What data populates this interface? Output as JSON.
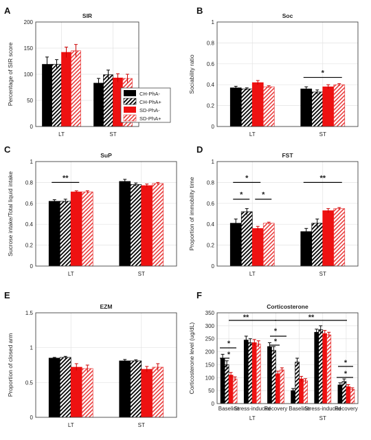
{
  "panel_labels": [
    "A",
    "B",
    "C",
    "D",
    "E",
    "F"
  ],
  "legend": [
    "CH-PhA-",
    "CH-PhA+",
    "SD-PhA-",
    "SD-PhA+"
  ],
  "colors": {
    "black": "#000000",
    "red": "#ee1111",
    "hatch_red": "#e83a3a",
    "axis": "#444444",
    "grid": "#e2e2e2"
  },
  "chart_data": [
    {
      "type": "bar",
      "title": "SIR",
      "ylabel": "Percentage of SIR score",
      "xlabel": "",
      "categories": [
        "LT",
        "ST"
      ],
      "ylim": [
        0,
        200
      ],
      "yticks": [
        "0",
        "50",
        "100",
        "150",
        "200"
      ],
      "ytick_values": [
        0,
        50,
        100,
        150,
        200
      ],
      "grid": true,
      "legend_position": "bottom-right",
      "series": [
        {
          "name": "CH-PhA-",
          "values": [
            119,
            83
          ],
          "errors": [
            14,
            9
          ]
        },
        {
          "name": "CH-PhA+",
          "values": [
            119,
            99
          ],
          "errors": [
            9,
            9
          ]
        },
        {
          "name": "SD-PhA-",
          "values": [
            142,
            93
          ],
          "errors": [
            10,
            8
          ]
        },
        {
          "name": "SD-PhA+",
          "values": [
            145,
            92
          ],
          "errors": [
            12,
            8
          ]
        }
      ],
      "significance": []
    },
    {
      "type": "bar",
      "title": "Soc",
      "ylabel": "Sociability ratio",
      "xlabel": "",
      "categories": [
        "LT",
        "ST"
      ],
      "ylim": [
        0,
        1
      ],
      "yticks": [
        "0",
        "0.2",
        "0.4",
        "0.6",
        "0.8",
        "1"
      ],
      "ytick_values": [
        0,
        0.2,
        0.4,
        0.6,
        0.8,
        1
      ],
      "grid": true,
      "series": [
        {
          "name": "CH-PhA-",
          "values": [
            0.37,
            0.36
          ],
          "errors": [
            0.015,
            0.02
          ]
        },
        {
          "name": "CH-PhA+",
          "values": [
            0.36,
            0.33
          ],
          "errors": [
            0.01,
            0.02
          ]
        },
        {
          "name": "SD-PhA-",
          "values": [
            0.42,
            0.38
          ],
          "errors": [
            0.02,
            0.02
          ]
        },
        {
          "name": "SD-PhA+",
          "values": [
            0.38,
            0.4
          ],
          "errors": [
            0.01,
            0.01
          ]
        }
      ],
      "significance": [
        {
          "group": 1,
          "from_series": 0,
          "to_series": 3,
          "y": 0.47,
          "label": "*"
        }
      ]
    },
    {
      "type": "bar",
      "title": "SuP",
      "ylabel": "Sucrose intake/Total liquid intake",
      "xlabel": "",
      "categories": [
        "LT",
        "ST"
      ],
      "ylim": [
        0,
        1
      ],
      "yticks": [
        "0",
        "0.2",
        "0.4",
        "0.6",
        "0.8",
        "1"
      ],
      "ytick_values": [
        0,
        0.2,
        0.4,
        0.6,
        0.8,
        1
      ],
      "grid": true,
      "series": [
        {
          "name": "CH-PhA-",
          "values": [
            0.62,
            0.81
          ],
          "errors": [
            0.015,
            0.02
          ]
        },
        {
          "name": "CH-PhA+",
          "values": [
            0.62,
            0.78
          ],
          "errors": [
            0.02,
            0.015
          ]
        },
        {
          "name": "SD-PhA-",
          "values": [
            0.71,
            0.77
          ],
          "errors": [
            0.01,
            0.015
          ]
        },
        {
          "name": "SD-PhA+",
          "values": [
            0.71,
            0.79
          ],
          "errors": [
            0.01,
            0.01
          ]
        }
      ],
      "significance": [
        {
          "group": 0,
          "from_series": 0,
          "to_series": 2,
          "y": 0.8,
          "label": "**"
        }
      ]
    },
    {
      "type": "bar",
      "title": "FST",
      "ylabel": "Proportion of immobility time",
      "xlabel": "",
      "categories": [
        "LT",
        "ST"
      ],
      "ylim": [
        0,
        1
      ],
      "yticks": [
        "0",
        "0.2",
        "0.4",
        "0.6",
        "0.8",
        "1"
      ],
      "ytick_values": [
        0,
        0.2,
        0.4,
        0.6,
        0.8,
        1
      ],
      "grid": true,
      "series": [
        {
          "name": "CH-PhA-",
          "values": [
            0.41,
            0.33
          ],
          "errors": [
            0.04,
            0.03
          ]
        },
        {
          "name": "CH-PhA+",
          "values": [
            0.52,
            0.41
          ],
          "errors": [
            0.03,
            0.04
          ]
        },
        {
          "name": "SD-PhA-",
          "values": [
            0.36,
            0.53
          ],
          "errors": [
            0.02,
            0.02
          ]
        },
        {
          "name": "SD-PhA+",
          "values": [
            0.41,
            0.55
          ],
          "errors": [
            0.01,
            0.01
          ]
        }
      ],
      "significance": [
        {
          "group": 0,
          "from_series": 0,
          "to_series": 1,
          "y": 0.64,
          "label": "*"
        },
        {
          "group": 0,
          "from_series": 2,
          "to_series": 3,
          "y": 0.64,
          "label": "*"
        },
        {
          "group": 0,
          "from_series": 0,
          "to_series": 2,
          "y": 0.8,
          "label": "*"
        },
        {
          "group": 1,
          "from_series": 0,
          "to_series": 3,
          "y": 0.8,
          "label": "**"
        }
      ]
    },
    {
      "type": "bar",
      "title": "EZM",
      "ylabel": "Proportion of closed arm",
      "xlabel": "",
      "categories": [
        "LT",
        "ST"
      ],
      "ylim": [
        0,
        1.5
      ],
      "yticks": [
        "0",
        "0.5",
        "1",
        "1.5"
      ],
      "ytick_values": [
        0,
        0.5,
        1,
        1.5
      ],
      "grid": true,
      "series": [
        {
          "name": "CH-PhA-",
          "values": [
            0.85,
            0.81
          ],
          "errors": [
            0.01,
            0.02
          ]
        },
        {
          "name": "CH-PhA+",
          "values": [
            0.86,
            0.81
          ],
          "errors": [
            0.015,
            0.015
          ]
        },
        {
          "name": "SD-PhA-",
          "values": [
            0.72,
            0.69
          ],
          "errors": [
            0.05,
            0.04
          ]
        },
        {
          "name": "SD-PhA+",
          "values": [
            0.7,
            0.72
          ],
          "errors": [
            0.05,
            0.05
          ]
        }
      ],
      "significance": []
    },
    {
      "type": "bar",
      "title": "Corticosterone",
      "ylabel": "Corticosterone level (ug/dL)",
      "xlabel": "",
      "categories": [
        "Baseline",
        "Stress-induced",
        "Recovery",
        "Baseline",
        "Stress-induced",
        "Recovery"
      ],
      "group_labels": [
        "LT",
        "ST"
      ],
      "ylim": [
        0,
        350
      ],
      "yticks": [
        "0",
        "50",
        "100",
        "150",
        "200",
        "250",
        "300",
        "350"
      ],
      "ytick_values": [
        0,
        50,
        100,
        150,
        200,
        250,
        300,
        350
      ],
      "grid": true,
      "series": [
        {
          "name": "CH-PhA-",
          "values": [
            175,
            245,
            220,
            50,
            275,
            72
          ],
          "errors": [
            15,
            15,
            15,
            8,
            12,
            8
          ]
        },
        {
          "name": "CH-PhA+",
          "values": [
            150,
            235,
            205,
            160,
            285,
            85
          ],
          "errors": [
            15,
            15,
            15,
            15,
            15,
            10
          ]
        },
        {
          "name": "SD-PhA-",
          "values": [
            110,
            235,
            115,
            95,
            270,
            65
          ],
          "errors": [
            10,
            12,
            10,
            10,
            12,
            8
          ]
        },
        {
          "name": "SD-PhA+",
          "values": [
            95,
            230,
            130,
            88,
            265,
            55
          ],
          "errors": [
            8,
            12,
            8,
            8,
            10,
            6
          ]
        }
      ],
      "significance": []
    }
  ]
}
